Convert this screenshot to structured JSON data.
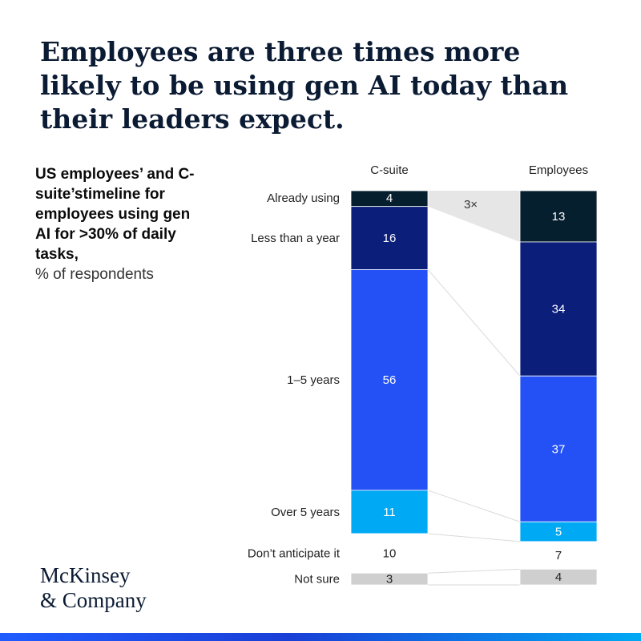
{
  "headline": "Employees are three times more likely to be using gen AI today than their leaders expect.",
  "subtitle": "US employees’ and C-suite’stimeline for employees using gen AI for >30% of daily tasks,",
  "unit": "% of respondents",
  "brand": {
    "line1": "McKinsey",
    "line2": "& Company"
  },
  "colors": {
    "already": "#061f2e",
    "less_year": "#0a1e7a",
    "one_five": "#2451f5",
    "over_five": "#00a9f4",
    "dont": "#ffffff",
    "not_sure": "#cfcfcf",
    "callout": "#e6e6e6"
  },
  "chart_data": {
    "type": "stacked-bar",
    "title": "US employees’ and C-suite’stimeline for employees using gen AI for >30% of daily tasks",
    "unit": "% of respondents",
    "columns": [
      "C-suite",
      "Employees"
    ],
    "categories": [
      "Already using",
      "Less than a year",
      "1–5 years",
      "Over 5 years",
      "Don’t anticipate it",
      "Not sure"
    ],
    "series": [
      {
        "name": "C-suite",
        "values": [
          4,
          16,
          56,
          11,
          10,
          3
        ]
      },
      {
        "name": "Employees",
        "values": [
          13,
          34,
          37,
          5,
          7,
          4
        ]
      }
    ],
    "annotation": "3×"
  }
}
